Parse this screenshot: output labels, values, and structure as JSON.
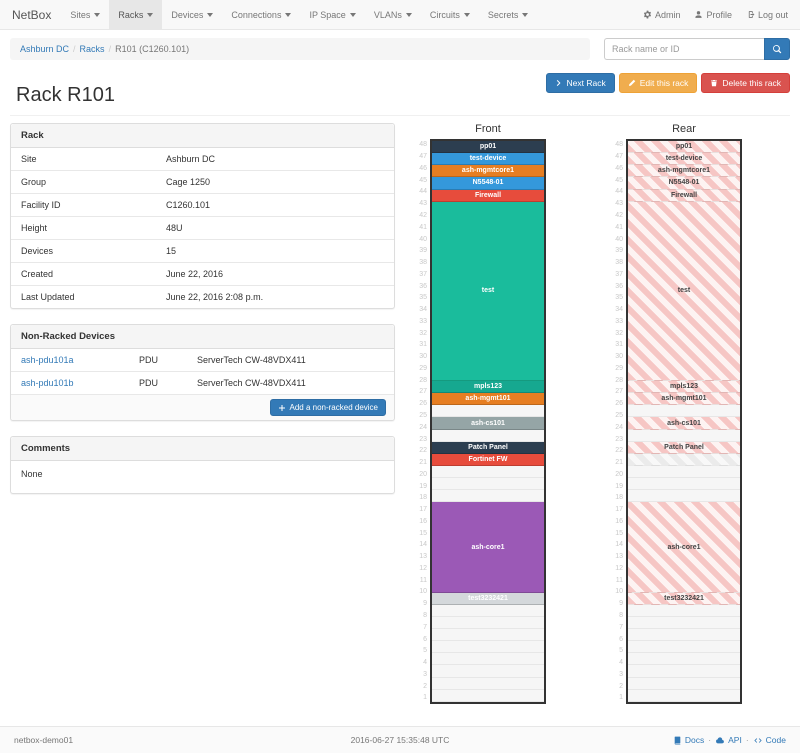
{
  "navbar": {
    "brand": "NetBox",
    "items": [
      {
        "label": "Sites",
        "active": false
      },
      {
        "label": "Racks",
        "active": true
      },
      {
        "label": "Devices",
        "active": false
      },
      {
        "label": "Connections",
        "active": false
      },
      {
        "label": "IP Space",
        "active": false
      },
      {
        "label": "VLANs",
        "active": false
      },
      {
        "label": "Circuits",
        "active": false
      },
      {
        "label": "Secrets",
        "active": false
      }
    ],
    "right": [
      {
        "label": "Admin",
        "icon": "gear-icon"
      },
      {
        "label": "Profile",
        "icon": "user-icon"
      },
      {
        "label": "Log out",
        "icon": "logout-icon"
      }
    ]
  },
  "breadcrumb": {
    "items": [
      {
        "label": "Ashburn DC",
        "link": true
      },
      {
        "label": "Racks",
        "link": true
      },
      {
        "label": "R101 (C1260.101)",
        "link": false
      }
    ]
  },
  "search": {
    "placeholder": "Rack name or ID",
    "icon": "search-icon"
  },
  "actions": {
    "next_label": "Next Rack",
    "edit_label": "Edit this rack",
    "delete_label": "Delete this rack"
  },
  "page_title": "Rack R101",
  "rack_panel": {
    "title": "Rack",
    "rows": [
      {
        "label": "Site",
        "value": "Ashburn DC",
        "link": true
      },
      {
        "label": "Group",
        "value": "Cage 1250",
        "link": true
      },
      {
        "label": "Facility ID",
        "value": "C1260.101",
        "link": false
      },
      {
        "label": "Height",
        "value": "48U",
        "link": false
      },
      {
        "label": "Devices",
        "value": "15",
        "link": true
      },
      {
        "label": "Created",
        "value": "June 22, 2016",
        "link": false
      },
      {
        "label": "Last Updated",
        "value": "June 22, 2016 2:08 p.m.",
        "link": false
      }
    ]
  },
  "nonracked_panel": {
    "title": "Non-Racked Devices",
    "rows": [
      {
        "name": "ash-pdu101a",
        "role": "PDU",
        "model": "ServerTech CW-48VDX411"
      },
      {
        "name": "ash-pdu101b",
        "role": "PDU",
        "model": "ServerTech CW-48VDX411"
      }
    ],
    "add_label": "Add a non-racked device"
  },
  "comments_panel": {
    "title": "Comments",
    "body": "None"
  },
  "elevations": {
    "units_total": 48,
    "front": {
      "title": "Front",
      "slots": [
        {
          "unit": 48,
          "u": 1,
          "label": "pp01",
          "color": "#2c3e50"
        },
        {
          "unit": 47,
          "u": 1,
          "label": "test-device",
          "color": "#3498db"
        },
        {
          "unit": 46,
          "u": 1,
          "label": "ash-mgmtcore1",
          "color": "#e67e22"
        },
        {
          "unit": 45,
          "u": 1,
          "label": "N5548-01",
          "color": "#3498db"
        },
        {
          "unit": 44,
          "u": 1,
          "label": "Firewall",
          "color": "#e74c3c"
        },
        {
          "unit": 43,
          "u": 16,
          "label": "test",
          "color": "#1abc9c"
        },
        {
          "unit": 27,
          "u": 1,
          "label": "mpls123",
          "color": "#16a890"
        },
        {
          "unit": 26,
          "u": 1,
          "label": "ash-mgmt101",
          "color": "#e67e22"
        },
        {
          "unit": 25,
          "u": 1,
          "label": "",
          "color": ""
        },
        {
          "unit": 24,
          "u": 1,
          "label": "ash-cs101",
          "color": "#95a5a6"
        },
        {
          "unit": 23,
          "u": 1,
          "label": "",
          "color": ""
        },
        {
          "unit": 22,
          "u": 1,
          "label": "Patch Panel",
          "color": "#2c3e50"
        },
        {
          "unit": 21,
          "u": 1,
          "label": "Fortinet FW",
          "color": "#e74c3c"
        },
        {
          "unit": 20,
          "u": 1,
          "label": "",
          "color": ""
        },
        {
          "unit": 19,
          "u": 1,
          "label": "",
          "color": ""
        },
        {
          "unit": 18,
          "u": 1,
          "label": "",
          "color": ""
        },
        {
          "unit": 17,
          "u": 8,
          "label": "ash-core1",
          "color": "#9b59b6"
        },
        {
          "unit": 9,
          "u": 1,
          "label": "test3232421",
          "color": "#d4d8db"
        },
        {
          "unit": 8,
          "u": 1,
          "label": "",
          "color": ""
        },
        {
          "unit": 7,
          "u": 1,
          "label": "",
          "color": ""
        },
        {
          "unit": 6,
          "u": 1,
          "label": "",
          "color": ""
        },
        {
          "unit": 5,
          "u": 1,
          "label": "",
          "color": ""
        },
        {
          "unit": 4,
          "u": 1,
          "label": "",
          "color": ""
        },
        {
          "unit": 3,
          "u": 1,
          "label": "",
          "color": ""
        },
        {
          "unit": 2,
          "u": 1,
          "label": "",
          "color": ""
        },
        {
          "unit": 1,
          "u": 1,
          "label": "",
          "color": ""
        }
      ]
    },
    "rear": {
      "title": "Rear",
      "slots": [
        {
          "unit": 48,
          "u": 1,
          "label": "pp01",
          "style": "striped"
        },
        {
          "unit": 47,
          "u": 1,
          "label": "test-device",
          "style": "striped"
        },
        {
          "unit": 46,
          "u": 1,
          "label": "ash-mgmtcore1",
          "style": "striped"
        },
        {
          "unit": 45,
          "u": 1,
          "label": "N5548-01",
          "style": "striped"
        },
        {
          "unit": 44,
          "u": 1,
          "label": "Firewall",
          "style": "striped"
        },
        {
          "unit": 43,
          "u": 16,
          "label": "test",
          "style": "striped"
        },
        {
          "unit": 27,
          "u": 1,
          "label": "mpls123",
          "style": "striped"
        },
        {
          "unit": 26,
          "u": 1,
          "label": "ash-mgmt101",
          "style": "striped"
        },
        {
          "unit": 25,
          "u": 1,
          "label": "",
          "style": "empty"
        },
        {
          "unit": 24,
          "u": 1,
          "label": "ash-cs101",
          "style": "striped"
        },
        {
          "unit": 23,
          "u": 1,
          "label": "",
          "style": "empty"
        },
        {
          "unit": 22,
          "u": 1,
          "label": "Patch Panel",
          "style": "striped"
        },
        {
          "unit": 21,
          "u": 1,
          "label": "",
          "style": "striped-gray"
        },
        {
          "unit": 20,
          "u": 1,
          "label": "",
          "style": "empty"
        },
        {
          "unit": 19,
          "u": 1,
          "label": "",
          "style": "empty"
        },
        {
          "unit": 18,
          "u": 1,
          "label": "",
          "style": "empty"
        },
        {
          "unit": 17,
          "u": 8,
          "label": "ash-core1",
          "style": "striped"
        },
        {
          "unit": 9,
          "u": 1,
          "label": "test3232421",
          "style": "striped"
        },
        {
          "unit": 8,
          "u": 1,
          "label": "",
          "style": "empty"
        },
        {
          "unit": 7,
          "u": 1,
          "label": "",
          "style": "empty"
        },
        {
          "unit": 6,
          "u": 1,
          "label": "",
          "style": "empty"
        },
        {
          "unit": 5,
          "u": 1,
          "label": "",
          "style": "empty"
        },
        {
          "unit": 4,
          "u": 1,
          "label": "",
          "style": "empty"
        },
        {
          "unit": 3,
          "u": 1,
          "label": "",
          "style": "empty"
        },
        {
          "unit": 2,
          "u": 1,
          "label": "",
          "style": "empty"
        },
        {
          "unit": 1,
          "u": 1,
          "label": "",
          "style": "empty"
        }
      ]
    }
  },
  "footer": {
    "hostname": "netbox-demo01",
    "timestamp": "2016-06-27 15:35:48 UTC",
    "links": [
      {
        "label": "Docs",
        "icon": "book-icon"
      },
      {
        "label": "API",
        "icon": "cloud-icon"
      },
      {
        "label": "Code",
        "icon": "code-icon"
      }
    ]
  },
  "colors": {
    "link": "#337ab7",
    "btn_primary": "#337ab7",
    "btn_warning": "#f0ad4e",
    "btn_danger": "#d9534f",
    "stripe_pink": "#f6c6c4",
    "stripe_gray": "#ebebeb"
  }
}
